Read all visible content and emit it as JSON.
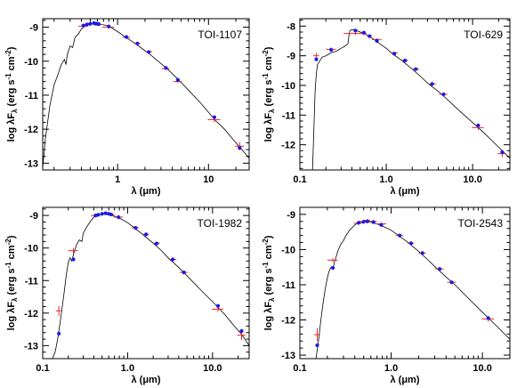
{
  "chart_data": [
    {
      "type": "line",
      "title": "TOI-1107",
      "xlabel": "λ (μm)",
      "ylabel": "log λF",
      "ylabel_sub": "λ",
      "ylabel_units": "(erg s",
      "ylabel_exp1": "-1",
      "ylabel_mid": " cm",
      "ylabel_exp2": "-2",
      "ylabel_end": ")",
      "xscale": "log",
      "xlim": [
        0.15,
        28
      ],
      "ylim": [
        -13.2,
        -8.75
      ],
      "xticks": [
        1,
        10
      ],
      "xtick_labels": [
        "1",
        "10"
      ],
      "yticks": [
        -13,
        -12,
        -11,
        -10,
        -9
      ],
      "ytick_labels": [
        "-13",
        "-12",
        "-11",
        "-10",
        "-9"
      ],
      "model": [
        [
          0.15,
          -13.15
        ],
        [
          0.16,
          -12.3
        ],
        [
          0.18,
          -11.3
        ],
        [
          0.2,
          -10.7
        ],
        [
          0.22,
          -10.4
        ],
        [
          0.24,
          -10.1
        ],
        [
          0.26,
          -9.95
        ],
        [
          0.27,
          -10.1
        ],
        [
          0.28,
          -9.8
        ],
        [
          0.3,
          -9.55
        ],
        [
          0.32,
          -9.6
        ],
        [
          0.34,
          -9.3
        ],
        [
          0.37,
          -9.2
        ],
        [
          0.4,
          -9.05
        ],
        [
          0.45,
          -8.95
        ],
        [
          0.5,
          -8.9
        ],
        [
          0.55,
          -8.88
        ],
        [
          0.6,
          -8.9
        ],
        [
          0.7,
          -8.93
        ],
        [
          0.8,
          -8.97
        ],
        [
          0.9,
          -9.05
        ],
        [
          1.0,
          -9.13
        ],
        [
          1.2,
          -9.28
        ],
        [
          1.5,
          -9.45
        ],
        [
          1.8,
          -9.6
        ],
        [
          2.2,
          -9.77
        ],
        [
          2.8,
          -10.0
        ],
        [
          3.5,
          -10.22
        ],
        [
          4.5,
          -10.5
        ],
        [
          6,
          -10.85
        ],
        [
          8,
          -11.2
        ],
        [
          10,
          -11.5
        ],
        [
          12,
          -11.75
        ],
        [
          15,
          -12.0
        ],
        [
          20,
          -12.4
        ],
        [
          28,
          -12.85
        ]
      ],
      "photometry": [
        {
          "x": 0.42,
          "y": -8.97,
          "xerr": 0.05,
          "yerr": 0.04
        },
        {
          "x": 0.46,
          "y": -8.93,
          "xerr": 0.05,
          "yerr": 0.04
        },
        {
          "x": 0.55,
          "y": -8.9,
          "xerr": 0.06,
          "yerr": 0.04
        },
        {
          "x": 0.62,
          "y": -8.92,
          "xerr": 0.06,
          "yerr": 0.04
        },
        {
          "x": 0.8,
          "y": -9.0,
          "xerr": 0.12,
          "yerr": 0.04
        },
        {
          "x": 1.25,
          "y": -9.3,
          "xerr": 0.12,
          "yerr": 0.03
        },
        {
          "x": 1.65,
          "y": -9.48,
          "xerr": 0.14,
          "yerr": 0.03
        },
        {
          "x": 2.2,
          "y": -9.72,
          "xerr": 0.2,
          "yerr": 0.03
        },
        {
          "x": 3.4,
          "y": -10.22,
          "xerr": 0.35,
          "yerr": 0.03
        },
        {
          "x": 4.6,
          "y": -10.6,
          "xerr": 0.5,
          "yerr": 0.03
        },
        {
          "x": 11.6,
          "y": -11.72,
          "xerr": 1.8,
          "yerr": 0.08
        },
        {
          "x": 22,
          "y": -12.5,
          "xerr": 2.5,
          "yerr": 0.12
        }
      ],
      "synthetic": [
        {
          "x": 0.42,
          "y": -8.95
        },
        {
          "x": 0.46,
          "y": -8.92
        },
        {
          "x": 0.5,
          "y": -8.9
        },
        {
          "x": 0.55,
          "y": -8.88
        },
        {
          "x": 0.58,
          "y": -8.9
        },
        {
          "x": 0.62,
          "y": -8.91
        },
        {
          "x": 0.8,
          "y": -8.98
        },
        {
          "x": 1.25,
          "y": -9.29
        },
        {
          "x": 1.65,
          "y": -9.48
        },
        {
          "x": 2.2,
          "y": -9.73
        },
        {
          "x": 3.4,
          "y": -10.2
        },
        {
          "x": 4.6,
          "y": -10.55
        },
        {
          "x": 11.6,
          "y": -11.65
        },
        {
          "x": 22,
          "y": -12.55
        }
      ]
    },
    {
      "type": "line",
      "title": "TOI-629",
      "xlabel": "λ (μm)",
      "ylabel": "log λF",
      "ylabel_sub": "λ",
      "ylabel_units": "(erg s",
      "ylabel_exp1": "-1",
      "ylabel_mid": " cm",
      "ylabel_exp2": "-2",
      "ylabel_end": ")",
      "xscale": "log",
      "xlim": [
        0.1,
        27
      ],
      "ylim": [
        -12.85,
        -7.75
      ],
      "xticks": [
        0.1,
        1,
        10
      ],
      "xtick_labels": [
        "0.1",
        "1.0",
        "10.0"
      ],
      "yticks": [
        -12,
        -11,
        -10,
        -9,
        -8
      ],
      "ytick_labels": [
        "-12",
        "-11",
        "-10",
        "-9",
        "-8"
      ],
      "model": [
        [
          0.14,
          -12.85
        ],
        [
          0.145,
          -11.5
        ],
        [
          0.15,
          -10.2
        ],
        [
          0.155,
          -9.6
        ],
        [
          0.16,
          -9.3
        ],
        [
          0.18,
          -9.05
        ],
        [
          0.2,
          -9.0
        ],
        [
          0.23,
          -8.9
        ],
        [
          0.26,
          -8.85
        ],
        [
          0.3,
          -8.75
        ],
        [
          0.33,
          -8.68
        ],
        [
          0.36,
          -8.6
        ],
        [
          0.37,
          -8.3
        ],
        [
          0.38,
          -8.15
        ],
        [
          0.4,
          -8.12
        ],
        [
          0.45,
          -8.15
        ],
        [
          0.5,
          -8.2
        ],
        [
          0.6,
          -8.3
        ],
        [
          0.7,
          -8.42
        ],
        [
          0.8,
          -8.55
        ],
        [
          1.0,
          -8.75
        ],
        [
          1.2,
          -8.95
        ],
        [
          1.5,
          -9.15
        ],
        [
          2.0,
          -9.45
        ],
        [
          2.5,
          -9.7
        ],
        [
          3.0,
          -9.92
        ],
        [
          4.0,
          -10.2
        ],
        [
          5.0,
          -10.45
        ],
        [
          7.0,
          -10.85
        ],
        [
          10,
          -11.25
        ],
        [
          13,
          -11.55
        ],
        [
          18,
          -11.95
        ],
        [
          22,
          -12.2
        ],
        [
          27,
          -12.45
        ]
      ],
      "photometry": [
        {
          "x": 0.155,
          "y": -9.0,
          "xerr": 0.012,
          "yerr": 0.1
        },
        {
          "x": 0.23,
          "y": -8.78,
          "xerr": 0.03,
          "yerr": 0.06
        },
        {
          "x": 0.44,
          "y": -8.25,
          "xerr": 0.12,
          "yerr": 0.05
        },
        {
          "x": 0.55,
          "y": -8.25,
          "xerr": 0.04,
          "yerr": 0.05
        },
        {
          "x": 0.64,
          "y": -8.32,
          "xerr": 0.05,
          "yerr": 0.04
        },
        {
          "x": 0.78,
          "y": -8.45,
          "xerr": 0.1,
          "yerr": 0.04
        },
        {
          "x": 1.24,
          "y": -8.9,
          "xerr": 0.12,
          "yerr": 0.04
        },
        {
          "x": 1.65,
          "y": -9.15,
          "xerr": 0.14,
          "yerr": 0.04
        },
        {
          "x": 2.2,
          "y": -9.45,
          "xerr": 0.2,
          "yerr": 0.04
        },
        {
          "x": 3.4,
          "y": -9.95,
          "xerr": 0.35,
          "yerr": 0.04
        },
        {
          "x": 4.6,
          "y": -10.3,
          "xerr": 0.5,
          "yerr": 0.04
        },
        {
          "x": 11.6,
          "y": -11.42,
          "xerr": 1.8,
          "yerr": 0.08
        },
        {
          "x": 22,
          "y": -12.3,
          "xerr": 2.5,
          "yerr": 0.12
        }
      ],
      "synthetic": [
        {
          "x": 0.155,
          "y": -9.12
        },
        {
          "x": 0.23,
          "y": -8.8
        },
        {
          "x": 0.44,
          "y": -8.15
        },
        {
          "x": 0.55,
          "y": -8.22
        },
        {
          "x": 0.64,
          "y": -8.34
        },
        {
          "x": 0.78,
          "y": -8.5
        },
        {
          "x": 1.24,
          "y": -8.93
        },
        {
          "x": 1.65,
          "y": -9.16
        },
        {
          "x": 2.2,
          "y": -9.45
        },
        {
          "x": 3.4,
          "y": -9.95
        },
        {
          "x": 4.6,
          "y": -10.3
        },
        {
          "x": 11.6,
          "y": -11.35
        },
        {
          "x": 22,
          "y": -12.25
        }
      ]
    },
    {
      "type": "line",
      "title": "TOI-1982",
      "xlabel": "λ (μm)",
      "ylabel": "log λF",
      "ylabel_sub": "λ",
      "ylabel_units": "(erg s",
      "ylabel_exp1": "-1",
      "ylabel_mid": " cm",
      "ylabel_exp2": "-2",
      "ylabel_end": ")",
      "xscale": "log",
      "xlim": [
        0.1,
        27
      ],
      "ylim": [
        -13.4,
        -8.75
      ],
      "xticks": [
        0.1,
        1,
        10
      ],
      "xtick_labels": [
        "0.1",
        "1.0",
        "10.0"
      ],
      "yticks": [
        -13,
        -12,
        -11,
        -10,
        -9
      ],
      "ytick_labels": [
        "-13",
        "-12",
        "-11",
        "-10",
        "-9"
      ],
      "model": [
        [
          0.13,
          -13.4
        ],
        [
          0.14,
          -13.2
        ],
        [
          0.15,
          -12.8
        ],
        [
          0.16,
          -12.3
        ],
        [
          0.17,
          -11.8
        ],
        [
          0.18,
          -11.3
        ],
        [
          0.19,
          -10.8
        ],
        [
          0.2,
          -10.45
        ],
        [
          0.21,
          -10.3
        ],
        [
          0.22,
          -10.4
        ],
        [
          0.23,
          -10.2
        ],
        [
          0.25,
          -9.9
        ],
        [
          0.27,
          -9.75
        ],
        [
          0.29,
          -9.8
        ],
        [
          0.3,
          -9.55
        ],
        [
          0.33,
          -9.35
        ],
        [
          0.36,
          -9.2
        ],
        [
          0.4,
          -9.05
        ],
        [
          0.45,
          -8.98
        ],
        [
          0.5,
          -8.95
        ],
        [
          0.55,
          -8.95
        ],
        [
          0.6,
          -8.97
        ],
        [
          0.7,
          -9.02
        ],
        [
          0.8,
          -9.08
        ],
        [
          1.0,
          -9.22
        ],
        [
          1.2,
          -9.38
        ],
        [
          1.5,
          -9.58
        ],
        [
          2.0,
          -9.85
        ],
        [
          2.5,
          -10.08
        ],
        [
          3.0,
          -10.3
        ],
        [
          4.0,
          -10.6
        ],
        [
          5.0,
          -10.85
        ],
        [
          7.0,
          -11.25
        ],
        [
          10,
          -11.65
        ],
        [
          14,
          -12.05
        ],
        [
          18,
          -12.4
        ],
        [
          22,
          -12.65
        ],
        [
          27,
          -13.0
        ]
      ],
      "photometry": [
        {
          "x": 0.155,
          "y": -11.93,
          "xerr": 0.012,
          "yerr": 0.15
        },
        {
          "x": 0.23,
          "y": -10.08,
          "xerr": 0.03,
          "yerr": 0.08
        },
        {
          "x": 0.42,
          "y": -9.0,
          "xerr": 0.05,
          "yerr": 0.04
        },
        {
          "x": 0.45,
          "y": -8.97,
          "xerr": 0.05,
          "yerr": 0.04
        },
        {
          "x": 0.55,
          "y": -8.95,
          "xerr": 0.07,
          "yerr": 0.04
        },
        {
          "x": 0.64,
          "y": -8.97,
          "xerr": 0.06,
          "yerr": 0.04
        },
        {
          "x": 0.78,
          "y": -9.05,
          "xerr": 0.1,
          "yerr": 0.04
        },
        {
          "x": 1.24,
          "y": -9.38,
          "xerr": 0.12,
          "yerr": 0.03
        },
        {
          "x": 1.65,
          "y": -9.58,
          "xerr": 0.14,
          "yerr": 0.03
        },
        {
          "x": 2.2,
          "y": -9.85,
          "xerr": 0.2,
          "yerr": 0.03
        },
        {
          "x": 3.4,
          "y": -10.35,
          "xerr": 0.35,
          "yerr": 0.03
        },
        {
          "x": 4.6,
          "y": -10.75,
          "xerr": 0.5,
          "yerr": 0.03
        },
        {
          "x": 11.6,
          "y": -11.88,
          "xerr": 1.8,
          "yerr": 0.08
        },
        {
          "x": 22,
          "y": -12.68,
          "xerr": 2.5,
          "yerr": 0.15
        }
      ],
      "synthetic": [
        {
          "x": 0.155,
          "y": -12.63
        },
        {
          "x": 0.23,
          "y": -10.35
        },
        {
          "x": 0.42,
          "y": -9.0
        },
        {
          "x": 0.45,
          "y": -8.98
        },
        {
          "x": 0.5,
          "y": -8.95
        },
        {
          "x": 0.55,
          "y": -8.93
        },
        {
          "x": 0.6,
          "y": -8.95
        },
        {
          "x": 0.64,
          "y": -8.97
        },
        {
          "x": 0.78,
          "y": -9.05
        },
        {
          "x": 1.24,
          "y": -9.38
        },
        {
          "x": 1.65,
          "y": -9.58
        },
        {
          "x": 2.2,
          "y": -9.86
        },
        {
          "x": 3.4,
          "y": -10.35
        },
        {
          "x": 4.6,
          "y": -10.75
        },
        {
          "x": 11.6,
          "y": -11.78
        },
        {
          "x": 22,
          "y": -12.55
        }
      ]
    },
    {
      "type": "line",
      "title": "TOI-2543",
      "xlabel": "λ (μm)",
      "ylabel": "log λF",
      "ylabel_sub": "λ",
      "ylabel_units": "(erg s",
      "ylabel_exp1": "-1",
      "ylabel_mid": " cm",
      "ylabel_exp2": "-2",
      "ylabel_end": ")",
      "xscale": "log",
      "xlim": [
        0.1,
        20
      ],
      "ylim": [
        -13.1,
        -8.8
      ],
      "xticks": [
        0.1,
        1,
        10
      ],
      "xtick_labels": [
        "0.1",
        "1.0",
        "10.0"
      ],
      "yticks": [
        -13,
        -12,
        -11,
        -10,
        -9
      ],
      "ytick_labels": [
        "-13",
        "-12",
        "-11",
        "-10",
        "-9"
      ],
      "model": [
        [
          0.15,
          -13.1
        ],
        [
          0.16,
          -12.6
        ],
        [
          0.17,
          -12.0
        ],
        [
          0.18,
          -11.5
        ],
        [
          0.19,
          -11.1
        ],
        [
          0.2,
          -10.8
        ],
        [
          0.21,
          -10.6
        ],
        [
          0.22,
          -10.5
        ],
        [
          0.23,
          -10.55
        ],
        [
          0.24,
          -10.35
        ],
        [
          0.26,
          -10.05
        ],
        [
          0.28,
          -9.85
        ],
        [
          0.3,
          -9.75
        ],
        [
          0.32,
          -9.6
        ],
        [
          0.35,
          -9.45
        ],
        [
          0.4,
          -9.3
        ],
        [
          0.45,
          -9.22
        ],
        [
          0.5,
          -9.2
        ],
        [
          0.55,
          -9.2
        ],
        [
          0.6,
          -9.22
        ],
        [
          0.7,
          -9.27
        ],
        [
          0.8,
          -9.33
        ],
        [
          1.0,
          -9.45
        ],
        [
          1.2,
          -9.6
        ],
        [
          1.5,
          -9.78
        ],
        [
          2.0,
          -10.05
        ],
        [
          2.5,
          -10.28
        ],
        [
          3.0,
          -10.48
        ],
        [
          4.0,
          -10.78
        ],
        [
          5.0,
          -11.0
        ],
        [
          7.0,
          -11.38
        ],
        [
          10,
          -11.78
        ],
        [
          14,
          -12.15
        ],
        [
          20,
          -12.55
        ]
      ],
      "photometry": [
        {
          "x": 0.155,
          "y": -12.42,
          "xerr": 0.012,
          "yerr": 0.18
        },
        {
          "x": 0.23,
          "y": -10.3,
          "xerr": 0.03,
          "yerr": 0.06
        },
        {
          "x": 0.44,
          "y": -9.25,
          "xerr": 0.05,
          "yerr": 0.04
        },
        {
          "x": 0.5,
          "y": -9.2,
          "xerr": 0.06,
          "yerr": 0.04
        },
        {
          "x": 0.55,
          "y": -9.17,
          "xerr": 0.04,
          "yerr": 0.04
        },
        {
          "x": 0.64,
          "y": -9.2,
          "xerr": 0.06,
          "yerr": 0.04
        },
        {
          "x": 0.78,
          "y": -9.27,
          "xerr": 0.1,
          "yerr": 0.04
        },
        {
          "x": 1.24,
          "y": -9.6,
          "xerr": 0.12,
          "yerr": 0.03
        },
        {
          "x": 1.65,
          "y": -9.82,
          "xerr": 0.14,
          "yerr": 0.03
        },
        {
          "x": 2.2,
          "y": -10.1,
          "xerr": 0.2,
          "yerr": 0.03
        },
        {
          "x": 3.4,
          "y": -10.55,
          "xerr": 0.35,
          "yerr": 0.03
        },
        {
          "x": 4.6,
          "y": -10.93,
          "xerr": 0.5,
          "yerr": 0.03
        },
        {
          "x": 11.6,
          "y": -11.97,
          "xerr": 1.8,
          "yerr": 0.08
        }
      ],
      "synthetic": [
        {
          "x": 0.155,
          "y": -12.72
        },
        {
          "x": 0.23,
          "y": -10.52
        },
        {
          "x": 0.44,
          "y": -9.24
        },
        {
          "x": 0.5,
          "y": -9.21
        },
        {
          "x": 0.55,
          "y": -9.2
        },
        {
          "x": 0.64,
          "y": -9.22
        },
        {
          "x": 0.78,
          "y": -9.3
        },
        {
          "x": 1.24,
          "y": -9.6
        },
        {
          "x": 1.65,
          "y": -9.82
        },
        {
          "x": 2.2,
          "y": -10.1
        },
        {
          "x": 3.4,
          "y": -10.55
        },
        {
          "x": 4.6,
          "y": -10.93
        },
        {
          "x": 11.6,
          "y": -11.95
        }
      ]
    }
  ]
}
